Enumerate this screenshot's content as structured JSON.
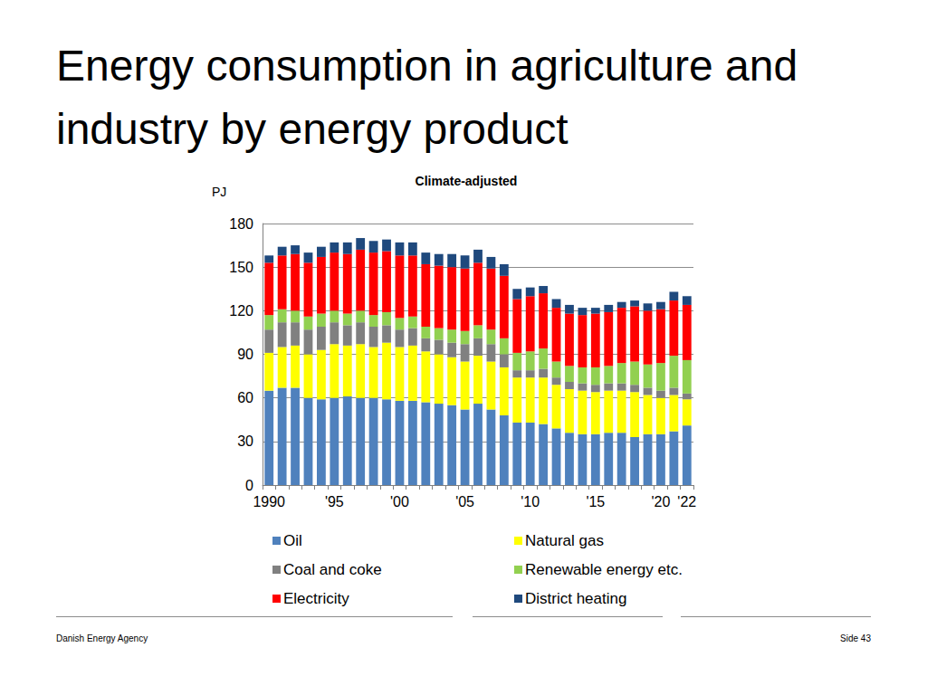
{
  "chart_data": {
    "type": "bar",
    "title": "Energy consumption in agriculture and industry by energy product",
    "subtitle": "Climate-adjusted",
    "y_label": "PJ",
    "categories": [
      "1990",
      null,
      null,
      null,
      null,
      "'95",
      null,
      null,
      null,
      null,
      "'00",
      null,
      null,
      null,
      null,
      "'05",
      null,
      null,
      null,
      null,
      "'10",
      null,
      null,
      null,
      null,
      "'15",
      null,
      null,
      null,
      null,
      "'20",
      null,
      "'22"
    ],
    "series": [
      {
        "name": "Oil",
        "color": "#4f81bd",
        "values": [
          65,
          67,
          67,
          60,
          59,
          60,
          61,
          60,
          60,
          59,
          58,
          58,
          57,
          56,
          55,
          52,
          56,
          52,
          48,
          43,
          43,
          42,
          39,
          36,
          35,
          35,
          36,
          36,
          33,
          35,
          35,
          37,
          41
        ]
      },
      {
        "name": "Natural gas",
        "color": "#ffff00",
        "values": [
          26,
          28,
          29,
          30,
          34,
          37,
          35,
          37,
          35,
          39,
          37,
          38,
          35,
          34,
          33,
          33,
          33,
          33,
          33,
          31,
          31,
          32,
          30,
          30,
          30,
          29,
          29,
          29,
          31,
          27,
          25,
          25,
          18
        ]
      },
      {
        "name": "Coal and coke",
        "color": "#808080",
        "values": [
          16,
          17,
          16,
          17,
          16,
          15,
          14,
          15,
          14,
          12,
          12,
          12,
          9,
          10,
          10,
          12,
          12,
          12,
          9,
          5,
          5,
          6,
          5,
          5,
          5,
          5,
          5,
          5,
          5,
          5,
          5,
          5,
          4
        ]
      },
      {
        "name": "Renewable energy etc.",
        "color": "#92d050",
        "values": [
          10,
          9,
          8,
          9,
          9,
          8,
          8,
          8,
          8,
          9,
          8,
          8,
          8,
          8,
          9,
          9,
          9,
          10,
          11,
          12,
          13,
          14,
          11,
          11,
          11,
          12,
          12,
          14,
          16,
          16,
          19,
          22,
          23
        ]
      },
      {
        "name": "Electricity",
        "color": "#ff0000",
        "values": [
          36,
          37,
          39,
          37,
          39,
          40,
          41,
          42,
          43,
          42,
          43,
          42,
          43,
          43,
          43,
          43,
          43,
          42,
          43,
          37,
          38,
          38,
          37,
          36,
          36,
          37,
          37,
          38,
          38,
          37,
          37,
          38,
          38
        ]
      },
      {
        "name": "District heating",
        "color": "#1f497d",
        "values": [
          5,
          6,
          6,
          7,
          7,
          7,
          8,
          8,
          8,
          8,
          9,
          9,
          8,
          8,
          9,
          9,
          9,
          8,
          8,
          7,
          6,
          5,
          6,
          6,
          5,
          4,
          5,
          4,
          4,
          5,
          5,
          6,
          6
        ]
      }
    ],
    "ylim": [
      0,
      180
    ],
    "yticks": [
      0,
      30,
      60,
      90,
      120,
      150,
      180
    ],
    "grid": true,
    "stacked": true,
    "legend": "bottom"
  },
  "footer": {
    "left": "Danish Energy Agency",
    "right": "Side 43"
  }
}
